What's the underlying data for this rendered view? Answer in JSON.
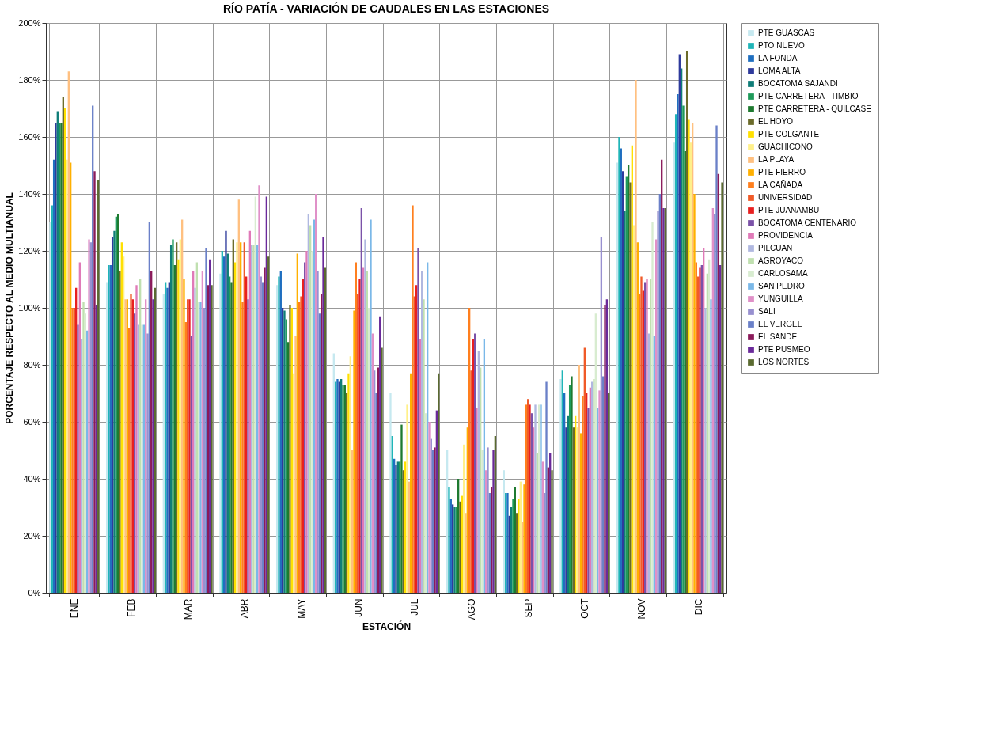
{
  "chart_data": {
    "type": "bar",
    "title": "RÍO PATÍA - VARIACIÓN DE CAUDALES EN LAS ESTACIONES",
    "xlabel": "ESTACIÓN",
    "ylabel": "PORCENTAJE RESPECTO AL MEDIO MULTIANUAL",
    "categories": [
      "ENE",
      "FEB",
      "MAR",
      "ABR",
      "MAY",
      "JUN",
      "JUL",
      "AGO",
      "SEP",
      "OCT",
      "NOV",
      "DIC"
    ],
    "ylim": [
      0,
      200
    ],
    "yticks": [
      {
        "value": 0,
        "label": "0%"
      },
      {
        "value": 20,
        "label": "20%"
      },
      {
        "value": 40,
        "label": "40%"
      },
      {
        "value": 60,
        "label": "60%"
      },
      {
        "value": 80,
        "label": "80%"
      },
      {
        "value": 100,
        "label": "100%"
      },
      {
        "value": 120,
        "label": "120%"
      },
      {
        "value": 140,
        "label": "140%"
      },
      {
        "value": 160,
        "label": "160%"
      },
      {
        "value": 180,
        "label": "180%"
      },
      {
        "value": 200,
        "label": "200%"
      }
    ],
    "grid": true,
    "legend": "right",
    "series": [
      {
        "name": "PTE GUASCAS",
        "color": "#c6e9f0",
        "values": [
          130,
          109,
          105,
          112,
          108,
          84,
          70,
          50,
          43,
          75,
          151,
          158
        ]
      },
      {
        "name": "PTO NUEVO",
        "color": "#1fb5b8",
        "values": [
          136,
          115,
          109,
          120,
          111,
          74,
          55,
          37,
          35,
          78,
          160,
          168
        ]
      },
      {
        "name": "LA FONDA",
        "color": "#1f6fc0",
        "values": [
          152,
          115,
          107,
          118,
          113,
          75,
          47,
          33,
          35,
          70,
          156,
          175
        ]
      },
      {
        "name": "LOMA ALTA",
        "color": "#2e3a9c",
        "values": [
          165,
          125,
          109,
          127,
          100,
          74,
          45,
          31,
          27,
          58,
          148,
          189
        ]
      },
      {
        "name": "BOCATOMA SAJANDI",
        "color": "#0f7d78",
        "values": [
          169,
          127,
          122,
          119,
          99,
          75,
          46,
          30,
          30,
          62,
          134,
          184
        ]
      },
      {
        "name": "PTE CARRETERA - TIMBIO",
        "color": "#1e9a5a",
        "values": [
          165,
          132,
          124,
          111,
          96,
          73,
          46,
          30,
          33,
          73,
          146,
          171
        ]
      },
      {
        "name": "PTE CARRETERA - QUILCASE",
        "color": "#1e7a30",
        "values": [
          165,
          133,
          115,
          109,
          88,
          73,
          59,
          40,
          37,
          76,
          150,
          155
        ]
      },
      {
        "name": "EL HOYO",
        "color": "#6b6b2a",
        "values": [
          174,
          113,
          123,
          124,
          101,
          70,
          43,
          32,
          28,
          58,
          144,
          190
        ]
      },
      {
        "name": "PTE COLGANTE",
        "color": "#ffe000",
        "values": [
          170,
          123,
          117,
          116,
          100,
          77,
          46,
          34,
          33,
          62,
          157,
          166
        ]
      },
      {
        "name": "GUACHICONO",
        "color": "#fff08a",
        "values": [
          152,
          118,
          124,
          123,
          77,
          83,
          66,
          52,
          39,
          58,
          129,
          158
        ]
      },
      {
        "name": "LA PLAYA",
        "color": "#ffc080",
        "values": [
          183,
          103,
          131,
          138,
          90,
          50,
          39,
          28,
          25,
          80,
          180,
          165
        ]
      },
      {
        "name": "PTE FIERRO",
        "color": "#ffb000",
        "values": [
          151,
          103,
          110,
          123,
          119,
          99,
          77,
          58,
          38,
          56,
          123,
          140
        ]
      },
      {
        "name": "LA CAÑADA",
        "color": "#ff7f1e",
        "values": [
          100,
          93,
          95,
          102,
          102,
          116,
          136,
          100,
          66,
          69,
          105,
          116
        ]
      },
      {
        "name": "UNIVERSIDAD",
        "color": "#f05a28",
        "values": [
          100,
          105,
          103,
          123,
          104,
          105,
          104,
          78,
          68,
          86,
          111,
          111
        ]
      },
      {
        "name": "PTE JUANAMBU",
        "color": "#e82020",
        "values": [
          107,
          103,
          103,
          111,
          110,
          110,
          108,
          89,
          66,
          70,
          106,
          114
        ]
      },
      {
        "name": "BOCATOMA CENTENARIO",
        "color": "#7b52a8",
        "values": [
          94,
          98,
          90,
          103,
          116,
          135,
          121,
          91,
          63,
          65,
          109,
          115
        ]
      },
      {
        "name": "PROVIDENCIA",
        "color": "#e07ab8",
        "values": [
          116,
          108,
          113,
          127,
          120,
          114,
          89,
          65,
          58,
          72,
          110,
          121
        ]
      },
      {
        "name": "PILCUAN",
        "color": "#b0b8e0",
        "values": [
          89,
          94,
          107,
          122,
          133,
          124,
          113,
          85,
          66,
          74,
          91,
          100
        ]
      },
      {
        "name": "AGROYACO",
        "color": "#c0e0b0",
        "values": [
          102,
          110,
          116,
          122,
          129,
          113,
          103,
          79,
          49,
          75,
          110,
          112
        ]
      },
      {
        "name": "CARLOSAMA",
        "color": "#d8ecd0",
        "values": [
          98,
          94,
          102,
          139,
          120,
          100,
          63,
          50,
          66,
          98,
          130,
          117
        ]
      },
      {
        "name": "SAN PEDRO",
        "color": "#7ab8e8",
        "values": [
          92,
          94,
          102,
          122,
          131,
          131,
          116,
          89,
          66,
          65,
          90,
          103
        ]
      },
      {
        "name": "YUNGUILLA",
        "color": "#e090c8",
        "values": [
          124,
          103,
          113,
          143,
          140,
          91,
          60,
          43,
          46,
          71,
          124,
          135
        ]
      },
      {
        "name": "SALI",
        "color": "#9890d0",
        "values": [
          123,
          91,
          100,
          111,
          113,
          78,
          54,
          51,
          35,
          125,
          134,
          133
        ]
      },
      {
        "name": "EL VERGEL",
        "color": "#6a80c8",
        "values": [
          171,
          130,
          121,
          109,
          98,
          70,
          50,
          35,
          74,
          76,
          140,
          164
        ]
      },
      {
        "name": "EL SANDE",
        "color": "#8a1a5a",
        "values": [
          148,
          113,
          108,
          114,
          105,
          79,
          51,
          37,
          44,
          101,
          152,
          147
        ]
      },
      {
        "name": "PTE PUSMEO",
        "color": "#6a2a9a",
        "values": [
          101,
          103,
          117,
          139,
          125,
          97,
          64,
          50,
          49,
          103,
          135,
          115
        ]
      },
      {
        "name": "LOS NORTES",
        "color": "#5a6a30",
        "values": [
          145,
          107,
          108,
          118,
          114,
          86,
          77,
          55,
          43,
          70,
          135,
          144
        ]
      }
    ]
  }
}
